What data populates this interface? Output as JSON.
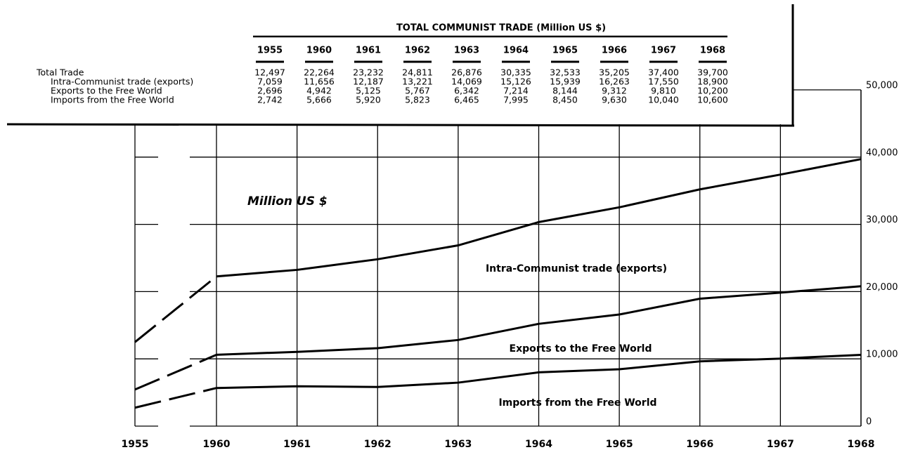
{
  "chart_data": {
    "type": "line",
    "stacked": true,
    "categories": [
      "1955",
      "1960",
      "1961",
      "1962",
      "1963",
      "1964",
      "1965",
      "1966",
      "1967",
      "1968"
    ],
    "annotation": "Million US $",
    "series": [
      {
        "name": "Intra-Communist trade (exports)",
        "color": "#000000",
        "values": [
          7059,
          11656,
          12187,
          13221,
          14069,
          15126,
          15939,
          16263,
          17550,
          18900
        ],
        "value_labels": [
          "7,059",
          "11,656",
          "12,187",
          "13,221",
          "14,069",
          "15,126",
          "15,939",
          "16,263",
          "17,550",
          "18,900"
        ]
      },
      {
        "name": "Exports to the Free World",
        "color": "#000000",
        "values": [
          2696,
          4942,
          5125,
          5767,
          6342,
          7214,
          8144,
          9312,
          9810,
          10200
        ],
        "value_labels": [
          "2,696",
          "4,942",
          "5,125",
          "5,767",
          "6,342",
          "7,214",
          "8,144",
          "9,312",
          "9,810",
          "10,200"
        ]
      },
      {
        "name": "Imports from the Free World",
        "color": "#000000",
        "values": [
          2742,
          5666,
          5920,
          5823,
          6465,
          7995,
          8450,
          9630,
          10040,
          10600
        ],
        "value_labels": [
          "2,742",
          "5,666",
          "5,920",
          "5,823",
          "6,465",
          "7,995",
          "8,450",
          "9,630",
          "10,040",
          "10,600"
        ]
      }
    ],
    "ylim": [
      0,
      50000
    ],
    "yticks": [
      0,
      {
        "value": 10000,
        "label": "10,000"
      },
      {
        "value": 20000,
        "label": "20,000"
      },
      {
        "value": 30000,
        "label": "30,000"
      },
      {
        "value": 40000,
        "label": "40,000"
      },
      {
        "value": 50000,
        "label": "50,000"
      }
    ],
    "grid": true,
    "table": {
      "title": "TOTAL COMMUNIST TRADE (Million US $)",
      "total": {
        "name": "Total Trade",
        "value_labels": [
          "12,497",
          "22,264",
          "23,232",
          "24,811",
          "26,876",
          "30,335",
          "32,533",
          "35,205",
          "37,400",
          "39,700"
        ]
      }
    }
  }
}
